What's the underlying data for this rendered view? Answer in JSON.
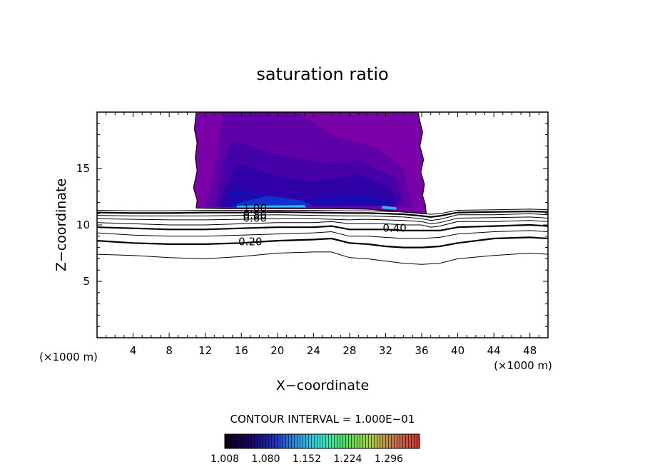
{
  "chart_data": {
    "type": "contour",
    "title": "saturation ratio",
    "xlabel": "X−coordinate",
    "ylabel": "Z−coordinate",
    "x_unit_left": "(×1000 m)",
    "x_unit_right": "(×1000 m)",
    "xlim": [
      0,
      50
    ],
    "ylim": [
      0,
      20
    ],
    "x_ticks": [
      "4",
      "8",
      "12",
      "16",
      "20",
      "24",
      "28",
      "32",
      "36",
      "40",
      "44",
      "48"
    ],
    "y_ticks": [
      "5",
      "10",
      "15"
    ],
    "contour_interval_text": "CONTOUR INTERVAL = 1.000E−01",
    "contour_labels": [
      {
        "text": "1.00",
        "x": 17.5,
        "z": 11.5
      },
      {
        "text": "0.60",
        "x": 17.5,
        "z": 10.6
      },
      {
        "text": "0.80",
        "x": 17.5,
        "z": 10.9
      },
      {
        "text": "0.40",
        "x": 33.0,
        "z": 9.7
      },
      {
        "text": "0.20",
        "x": 17.0,
        "z": 8.5
      }
    ],
    "contour_lines": [
      {
        "level": 0.1,
        "bold": false,
        "points": [
          [
            0,
            7.4
          ],
          [
            4,
            7.3
          ],
          [
            8,
            7.1
          ],
          [
            12,
            7.0
          ],
          [
            16,
            7.2
          ],
          [
            20,
            7.5
          ],
          [
            24,
            7.6
          ],
          [
            26,
            7.6
          ],
          [
            28,
            7.1
          ],
          [
            30,
            7.0
          ],
          [
            32,
            6.8
          ],
          [
            34,
            6.6
          ],
          [
            36,
            6.5
          ],
          [
            38,
            6.6
          ],
          [
            40,
            7.0
          ],
          [
            44,
            7.3
          ],
          [
            48,
            7.5
          ],
          [
            50,
            7.4
          ]
        ]
      },
      {
        "level": 0.2,
        "bold": true,
        "points": [
          [
            0,
            8.6
          ],
          [
            4,
            8.4
          ],
          [
            8,
            8.3
          ],
          [
            12,
            8.3
          ],
          [
            16,
            8.4
          ],
          [
            20,
            8.6
          ],
          [
            24,
            8.7
          ],
          [
            26,
            8.8
          ],
          [
            28,
            8.4
          ],
          [
            30,
            8.3
          ],
          [
            32,
            8.1
          ],
          [
            34,
            8.0
          ],
          [
            36,
            8.0
          ],
          [
            38,
            8.1
          ],
          [
            40,
            8.4
          ],
          [
            44,
            8.8
          ],
          [
            48,
            8.9
          ],
          [
            50,
            8.8
          ]
        ]
      },
      {
        "level": 0.3,
        "bold": false,
        "points": [
          [
            0,
            9.3
          ],
          [
            4,
            9.1
          ],
          [
            8,
            9.0
          ],
          [
            12,
            9.0
          ],
          [
            16,
            9.1
          ],
          [
            20,
            9.2
          ],
          [
            24,
            9.3
          ],
          [
            26,
            9.4
          ],
          [
            28,
            9.0
          ],
          [
            30,
            9.0
          ],
          [
            32,
            8.9
          ],
          [
            34,
            8.8
          ],
          [
            36,
            8.8
          ],
          [
            38,
            8.9
          ],
          [
            40,
            9.2
          ],
          [
            44,
            9.4
          ],
          [
            48,
            9.5
          ],
          [
            50,
            9.4
          ]
        ]
      },
      {
        "level": 0.4,
        "bold": true,
        "points": [
          [
            0,
            9.8
          ],
          [
            4,
            9.7
          ],
          [
            8,
            9.6
          ],
          [
            12,
            9.6
          ],
          [
            16,
            9.7
          ],
          [
            20,
            9.8
          ],
          [
            24,
            9.8
          ],
          [
            26,
            9.9
          ],
          [
            28,
            9.6
          ],
          [
            30,
            9.6
          ],
          [
            32,
            9.6
          ],
          [
            34,
            9.5
          ],
          [
            36,
            9.5
          ],
          [
            38,
            9.5
          ],
          [
            40,
            9.8
          ],
          [
            44,
            9.9
          ],
          [
            48,
            10.0
          ],
          [
            50,
            9.9
          ]
        ]
      },
      {
        "level": 0.5,
        "bold": false,
        "points": [
          [
            0,
            10.2
          ],
          [
            4,
            10.1
          ],
          [
            8,
            10.0
          ],
          [
            12,
            10.0
          ],
          [
            16,
            10.1
          ],
          [
            20,
            10.2
          ],
          [
            24,
            10.2
          ],
          [
            26,
            10.3
          ],
          [
            28,
            10.1
          ],
          [
            30,
            10.1
          ],
          [
            32,
            10.1
          ],
          [
            34,
            10.0
          ],
          [
            36,
            10.0
          ],
          [
            37,
            9.8
          ],
          [
            38,
            9.9
          ],
          [
            40,
            10.3
          ],
          [
            44,
            10.3
          ],
          [
            48,
            10.4
          ],
          [
            50,
            10.3
          ]
        ]
      },
      {
        "level": 0.6,
        "bold": false,
        "points": [
          [
            0,
            10.55
          ],
          [
            4,
            10.5
          ],
          [
            8,
            10.45
          ],
          [
            12,
            10.45
          ],
          [
            16,
            10.5
          ],
          [
            20,
            10.55
          ],
          [
            24,
            10.55
          ],
          [
            28,
            10.45
          ],
          [
            30,
            10.5
          ],
          [
            32,
            10.45
          ],
          [
            34,
            10.4
          ],
          [
            36,
            10.3
          ],
          [
            37,
            10.1
          ],
          [
            38,
            10.2
          ],
          [
            40,
            10.6
          ],
          [
            44,
            10.65
          ],
          [
            48,
            10.7
          ],
          [
            50,
            10.6
          ]
        ]
      },
      {
        "level": 0.7,
        "bold": false,
        "points": [
          [
            0,
            10.85
          ],
          [
            4,
            10.8
          ],
          [
            8,
            10.8
          ],
          [
            12,
            10.8
          ],
          [
            16,
            10.85
          ],
          [
            20,
            10.9
          ],
          [
            24,
            10.85
          ],
          [
            28,
            10.8
          ],
          [
            30,
            10.8
          ],
          [
            32,
            10.75
          ],
          [
            34,
            10.7
          ],
          [
            36,
            10.55
          ],
          [
            37,
            10.4
          ],
          [
            38,
            10.5
          ],
          [
            40,
            10.9
          ],
          [
            44,
            10.9
          ],
          [
            48,
            11.0
          ],
          [
            50,
            10.9
          ]
        ]
      },
      {
        "level": 0.8,
        "bold": true,
        "points": [
          [
            0,
            11.1
          ],
          [
            4,
            11.05
          ],
          [
            8,
            11.05
          ],
          [
            12,
            11.1
          ],
          [
            16,
            11.1
          ],
          [
            20,
            11.15
          ],
          [
            24,
            11.1
          ],
          [
            28,
            11.05
          ],
          [
            30,
            11.05
          ],
          [
            32,
            11.0
          ],
          [
            34,
            10.95
          ],
          [
            36,
            10.8
          ],
          [
            37,
            10.7
          ],
          [
            38,
            10.8
          ],
          [
            40,
            11.1
          ],
          [
            44,
            11.15
          ],
          [
            48,
            11.2
          ],
          [
            50,
            11.15
          ]
        ]
      },
      {
        "level": 0.9,
        "bold": false,
        "points": [
          [
            0,
            11.3
          ],
          [
            4,
            11.25
          ],
          [
            8,
            11.25
          ],
          [
            12,
            11.3
          ],
          [
            16,
            11.3
          ],
          [
            20,
            11.3
          ],
          [
            24,
            11.3
          ],
          [
            28,
            11.25
          ],
          [
            30,
            11.25
          ],
          [
            32,
            11.2
          ],
          [
            34,
            11.15
          ],
          [
            36,
            11.0
          ],
          [
            37,
            10.95
          ],
          [
            38,
            11.0
          ],
          [
            40,
            11.3
          ],
          [
            44,
            11.35
          ],
          [
            48,
            11.4
          ],
          [
            50,
            11.35
          ]
        ]
      }
    ],
    "supersaturated_region": {
      "base_color": "#7a00a8",
      "outline_points": [
        [
          11.0,
          20
        ],
        [
          10.8,
          18.5
        ],
        [
          11.1,
          17.3
        ],
        [
          10.9,
          16.0
        ],
        [
          11.1,
          14.8
        ],
        [
          10.7,
          13.3
        ],
        [
          11.1,
          12.2
        ],
        [
          11.0,
          11.5
        ],
        [
          14,
          11.45
        ],
        [
          20,
          11.45
        ],
        [
          26,
          11.45
        ],
        [
          30,
          11.4
        ],
        [
          33,
          11.2
        ],
        [
          36.5,
          11.0
        ],
        [
          36.4,
          11.8
        ],
        [
          36.1,
          12.6
        ],
        [
          36.3,
          13.6
        ],
        [
          35.9,
          14.7
        ],
        [
          36.2,
          15.8
        ],
        [
          35.8,
          17.0
        ],
        [
          36.1,
          18.2
        ],
        [
          35.8,
          19.2
        ],
        [
          35.6,
          20
        ]
      ],
      "shades": [
        {
          "color": "#5f00a8",
          "points": [
            [
              14,
              20
            ],
            [
              22,
              20
            ],
            [
              26,
              18.0
            ],
            [
              31,
              16.8
            ],
            [
              34,
              15.0
            ],
            [
              34.5,
              13.0
            ],
            [
              35,
              11.6
            ],
            [
              12,
              11.6
            ],
            [
              12.5,
              13.0
            ],
            [
              13.0,
              15.0
            ],
            [
              13.5,
              17.5
            ]
          ]
        },
        {
          "color": "#4600a8",
          "points": [
            [
              15,
              17.5
            ],
            [
              20,
              16.2
            ],
            [
              25,
              15.5
            ],
            [
              29,
              15.7
            ],
            [
              33,
              14.2
            ],
            [
              34,
              12.0
            ],
            [
              13,
              11.6
            ],
            [
              13.5,
              13.2
            ],
            [
              14,
              15.5
            ]
          ]
        },
        {
          "color": "#2e00a6",
          "points": [
            [
              15.5,
              15.5
            ],
            [
              20,
              14.3
            ],
            [
              24,
              13.8
            ],
            [
              29,
              14.5
            ],
            [
              32.5,
              13.3
            ],
            [
              33.5,
              11.7
            ],
            [
              13.5,
              11.6
            ],
            [
              14,
              13.0
            ]
          ]
        },
        {
          "color": "#1a0ab0",
          "points": [
            [
              15,
              13.4
            ],
            [
              19,
              12.6
            ],
            [
              22,
              12.2
            ],
            [
              28,
              12.8
            ],
            [
              32,
              12.4
            ],
            [
              33,
              11.7
            ],
            [
              14.5,
              11.6
            ]
          ]
        },
        {
          "color": "#1030d0",
          "points": [
            [
              19,
              12.6
            ],
            [
              22.5,
              12.2
            ],
            [
              24,
              11.7
            ],
            [
              15,
              11.6
            ],
            [
              16,
              12.0
            ]
          ]
        }
      ],
      "highlights": [
        {
          "color": "#38b8ff",
          "points": [
            [
              15.5,
              11.7
            ],
            [
              23,
              11.75
            ],
            [
              23.2,
              11.55
            ],
            [
              15.5,
              11.55
            ]
          ]
        },
        {
          "color": "#38b8ff",
          "points": [
            [
              31.6,
              11.7
            ],
            [
              33.2,
              11.55
            ],
            [
              33.2,
              11.35
            ],
            [
              31.6,
              11.45
            ]
          ]
        }
      ]
    },
    "colorbar": {
      "min": 1.008,
      "max": 1.35,
      "tick_labels": [
        "1.008",
        "1.080",
        "1.152",
        "1.224",
        "1.296"
      ],
      "stops": [
        "#120018",
        "#1a0070",
        "#1c2ad2",
        "#209ef2",
        "#1ff0c8",
        "#46e650",
        "#a8d22e",
        "#d26a4a",
        "#e02a28"
      ]
    }
  }
}
